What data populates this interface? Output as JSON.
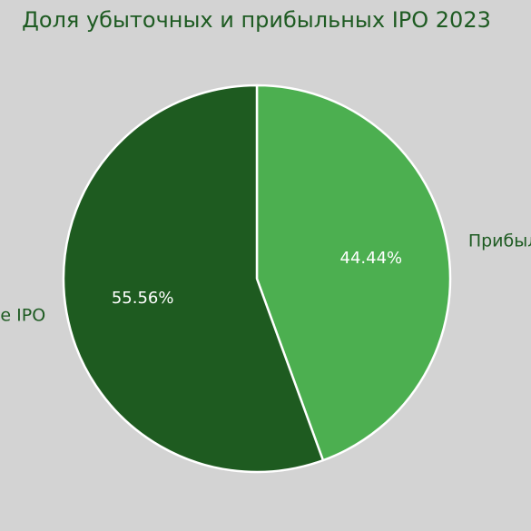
{
  "chart_data": {
    "type": "pie",
    "title": "Доля убыточных и прибыльных IPO 2023",
    "slices": [
      {
        "label": "Прибыльные IPO",
        "value": 44.44,
        "pct_label": "44.44%",
        "color": "#4caf50"
      },
      {
        "label": "Убыточные IPO",
        "value": 55.56,
        "pct_label": "55.56%",
        "color": "#1e5b20"
      }
    ],
    "start": "top",
    "direction": "clockwise",
    "edge_color": "#ffffff"
  }
}
